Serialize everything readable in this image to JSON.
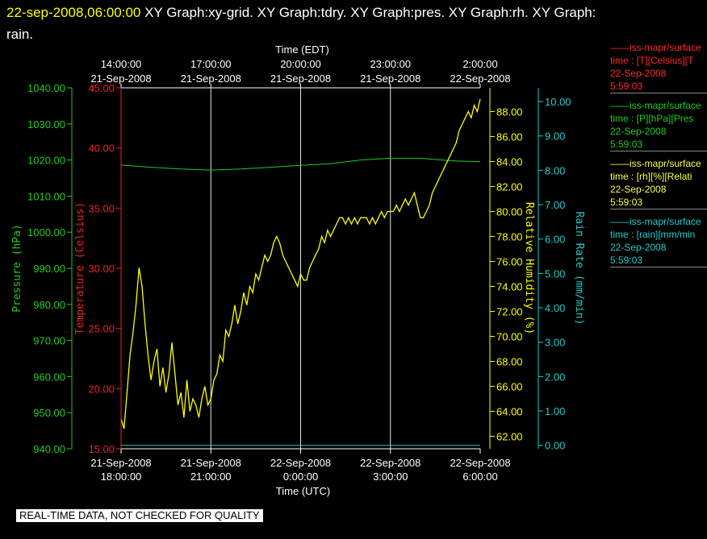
{
  "header": {
    "timestamp": "22-sep-2008,06:00:00",
    "graphs": "XY Graph:xy-grid.  XY Graph:tdry.  XY Graph:pres.  XY Graph:rh.  XY Graph:",
    "line2": "rain."
  },
  "legend": [
    {
      "color": "#ff2a2a",
      "line1": "——iss-mapr/surface",
      "line2": "time : [T][Celsius][T",
      "date": "22-Sep-2008",
      "time": "5:59:03"
    },
    {
      "color": "#22cc22",
      "line1": "——iss-mapr/surface",
      "line2": "time : [P][hPa][Pres",
      "date": "22-Sep-2008",
      "time": "5:59:03"
    },
    {
      "color": "#ffff44",
      "line1": "——iss-mapr/surface",
      "line2": "time : [rh][%][Relati",
      "date": "22-Sep-2008",
      "time": "5:59:03"
    },
    {
      "color": "#22cccc",
      "line1": "——iss-mapr/surface",
      "line2": "time : [rain][mm/min",
      "date": "22-Sep-2008",
      "time": "5:59:03"
    }
  ],
  "warning": "REAL-TIME DATA, NOT CHECKED FOR QUALITY",
  "chart_data": {
    "type": "line",
    "top_axis": {
      "label": "Time (EDT)",
      "ticks": [
        {
          "t": 0,
          "l1": "14:00:00",
          "l2": "21-Sep-2008"
        },
        {
          "t": 3,
          "l1": "17:00:00",
          "l2": "21-Sep-2008"
        },
        {
          "t": 6,
          "l1": "20:00:00",
          "l2": "21-Sep-2008"
        },
        {
          "t": 9,
          "l1": "23:00:00",
          "l2": "21-Sep-2008"
        },
        {
          "t": 12,
          "l1": "2:00:00",
          "l2": "22-Sep-2008"
        }
      ]
    },
    "bottom_axis": {
      "label": "Time (UTC)",
      "ticks": [
        {
          "t": 0,
          "l1": "21-Sep-2008",
          "l2": "18:00:00"
        },
        {
          "t": 3,
          "l1": "21-Sep-2008",
          "l2": "21:00:00"
        },
        {
          "t": 6,
          "l1": "22-Sep-2008",
          "l2": "0:00:00"
        },
        {
          "t": 9,
          "l1": "22-Sep-2008",
          "l2": "3:00:00"
        },
        {
          "t": 12,
          "l1": "22-Sep-2008",
          "l2": "6:00:00"
        }
      ]
    },
    "grid_times": [
      3,
      6,
      9
    ],
    "axes": {
      "pressure": {
        "label": "Pressure (hPa)",
        "min": 940,
        "max": 1040,
        "color": "#22cc22",
        "ticks": [
          "940.00",
          "950.00",
          "960.00",
          "970.00",
          "980.00",
          "990.00",
          "1000.00",
          "1010.00",
          "1020.00",
          "1030.00",
          "1040.00"
        ]
      },
      "temperature": {
        "label": "Temperature (Celsius)",
        "min": 15,
        "max": 45,
        "color": "#ee2222",
        "ticks": [
          "15.00",
          "20.00",
          "25.00",
          "30.00",
          "35.00",
          "40.00",
          "45.00"
        ]
      },
      "rh": {
        "label": "Relative Humidity (%)",
        "min": 61,
        "max": 89.9,
        "color": "#ffff00",
        "ticks": [
          "62.00",
          "64.00",
          "66.00",
          "68.00",
          "70.00",
          "72.00",
          "74.00",
          "76.00",
          "78.00",
          "80.00",
          "82.00",
          "84.00",
          "86.00",
          "88.00"
        ]
      },
      "rain": {
        "label": "Rain Rate (mm/min)",
        "min": -0.1,
        "max": 10.4,
        "color": "#22cccc",
        "ticks": [
          "0.00",
          "1.00",
          "2.00",
          "3.00",
          "4.00",
          "5.00",
          "6.00",
          "7.00",
          "8.00",
          "9.00",
          "10.00"
        ]
      }
    },
    "series": [
      {
        "name": "pres",
        "axis": "pressure",
        "color": "#22cc22",
        "points": [
          [
            0,
            1018.6
          ],
          [
            1,
            1018.0
          ],
          [
            2,
            1017.5
          ],
          [
            3,
            1017.2
          ],
          [
            4,
            1017.5
          ],
          [
            5,
            1018.0
          ],
          [
            6,
            1018.5
          ],
          [
            7,
            1019.0
          ],
          [
            8,
            1020.0
          ],
          [
            9,
            1020.5
          ],
          [
            10,
            1020.5
          ],
          [
            11,
            1019.8
          ],
          [
            12,
            1019.5
          ]
        ]
      },
      {
        "name": "rain",
        "axis": "rain",
        "color": "#22cccc",
        "points": [
          [
            0,
            0.0
          ],
          [
            12,
            0.0
          ]
        ]
      },
      {
        "name": "rh",
        "axis": "rh",
        "color": "#ffff00",
        "points": [
          [
            0,
            63.4
          ],
          [
            0.1,
            62.6
          ],
          [
            0.2,
            65.5
          ],
          [
            0.3,
            68.5
          ],
          [
            0.4,
            70.3
          ],
          [
            0.5,
            72.5
          ],
          [
            0.6,
            75.5
          ],
          [
            0.7,
            74.0
          ],
          [
            0.8,
            71.0
          ],
          [
            0.9,
            68.5
          ],
          [
            1.0,
            66.5
          ],
          [
            1.1,
            68.0
          ],
          [
            1.2,
            69.0
          ],
          [
            1.3,
            66.0
          ],
          [
            1.4,
            67.5
          ],
          [
            1.5,
            65.5
          ],
          [
            1.6,
            67.0
          ],
          [
            1.7,
            69.5
          ],
          [
            1.8,
            67.0
          ],
          [
            1.9,
            64.5
          ],
          [
            2.0,
            65.5
          ],
          [
            2.1,
            63.5
          ],
          [
            2.2,
            66.5
          ],
          [
            2.3,
            64.0
          ],
          [
            2.4,
            65.0
          ],
          [
            2.5,
            64.5
          ],
          [
            2.6,
            63.5
          ],
          [
            2.7,
            65.0
          ],
          [
            2.8,
            66.0
          ],
          [
            2.9,
            64.5
          ],
          [
            3.0,
            65.0
          ],
          [
            3.1,
            66.5
          ],
          [
            3.2,
            67.0
          ],
          [
            3.3,
            68.5
          ],
          [
            3.4,
            68.0
          ],
          [
            3.5,
            70.5
          ],
          [
            3.6,
            70.0
          ],
          [
            3.7,
            71.0
          ],
          [
            3.8,
            72.5
          ],
          [
            3.9,
            71.0
          ],
          [
            4.0,
            72.0
          ],
          [
            4.1,
            73.5
          ],
          [
            4.2,
            72.5
          ],
          [
            4.3,
            74.0
          ],
          [
            4.4,
            73.5
          ],
          [
            4.5,
            75.0
          ],
          [
            4.6,
            74.5
          ],
          [
            4.7,
            75.5
          ],
          [
            4.8,
            76.5
          ],
          [
            4.9,
            76.0
          ],
          [
            5.0,
            76.5
          ],
          [
            5.1,
            77.5
          ],
          [
            5.2,
            78.0
          ],
          [
            5.3,
            77.5
          ],
          [
            5.4,
            76.5
          ],
          [
            5.5,
            76.0
          ],
          [
            5.6,
            75.5
          ],
          [
            5.7,
            75.0
          ],
          [
            5.8,
            74.5
          ],
          [
            5.9,
            74.0
          ],
          [
            6.0,
            75.0
          ],
          [
            6.1,
            74.5
          ],
          [
            6.2,
            74.5
          ],
          [
            6.3,
            75.5
          ],
          [
            6.4,
            76.0
          ],
          [
            6.5,
            76.5
          ],
          [
            6.6,
            77.0
          ],
          [
            6.7,
            78.0
          ],
          [
            6.8,
            77.5
          ],
          [
            6.9,
            78.5
          ],
          [
            7.0,
            78.0
          ],
          [
            7.1,
            78.5
          ],
          [
            7.2,
            79.0
          ],
          [
            7.3,
            79.5
          ],
          [
            7.4,
            79.5
          ],
          [
            7.5,
            79.0
          ],
          [
            7.6,
            79.5
          ],
          [
            7.7,
            79.0
          ],
          [
            7.8,
            79.5
          ],
          [
            7.9,
            79.0
          ],
          [
            8.0,
            79.5
          ],
          [
            8.1,
            79.5
          ],
          [
            8.2,
            79.5
          ],
          [
            8.3,
            79.0
          ],
          [
            8.4,
            79.5
          ],
          [
            8.5,
            79.0
          ],
          [
            8.6,
            79.5
          ],
          [
            8.7,
            80.0
          ],
          [
            8.8,
            79.5
          ],
          [
            8.9,
            80.0
          ],
          [
            9.0,
            80.0
          ],
          [
            9.1,
            80.0
          ],
          [
            9.2,
            80.5
          ],
          [
            9.3,
            80.0
          ],
          [
            9.4,
            80.5
          ],
          [
            9.5,
            81.0
          ],
          [
            9.6,
            80.5
          ],
          [
            9.7,
            81.0
          ],
          [
            9.8,
            81.5
          ],
          [
            9.9,
            80.5
          ],
          [
            10.0,
            79.5
          ],
          [
            10.1,
            79.5
          ],
          [
            10.2,
            80.0
          ],
          [
            10.3,
            80.5
          ],
          [
            10.4,
            81.5
          ],
          [
            10.5,
            82.0
          ],
          [
            10.6,
            82.5
          ],
          [
            10.7,
            83.0
          ],
          [
            10.8,
            83.5
          ],
          [
            10.9,
            84.0
          ],
          [
            11.0,
            84.5
          ],
          [
            11.1,
            85.0
          ],
          [
            11.2,
            85.5
          ],
          [
            11.3,
            86.5
          ],
          [
            11.4,
            87.0
          ],
          [
            11.5,
            87.5
          ],
          [
            11.6,
            88.0
          ],
          [
            11.7,
            87.5
          ],
          [
            11.8,
            88.5
          ],
          [
            11.9,
            88.0
          ],
          [
            12.0,
            89.0
          ]
        ]
      }
    ]
  }
}
